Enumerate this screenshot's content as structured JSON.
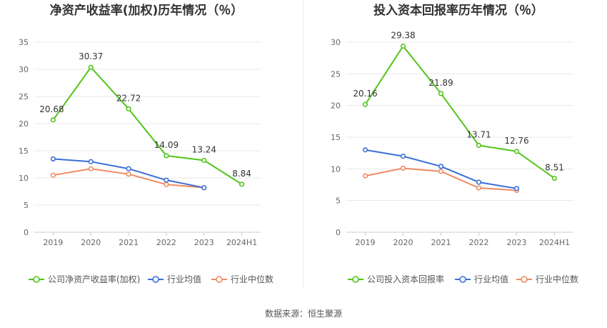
{
  "source": "数据来源：恒生聚源",
  "chart_data": [
    {
      "type": "line",
      "title": "净资产收益率(加权)历年情况（％）",
      "categories": [
        "2019",
        "2020",
        "2021",
        "2022",
        "2023",
        "2024H1"
      ],
      "ylim": [
        0,
        35
      ],
      "yticks": [
        0,
        5,
        10,
        15,
        20,
        25,
        30,
        35
      ],
      "grid": true,
      "legend_position": "bottom",
      "series": [
        {
          "name": "公司净资产收益率(加权)",
          "color": "#52c41a",
          "values": [
            20.68,
            30.37,
            22.72,
            14.09,
            13.24,
            8.84
          ],
          "labels": [
            "20.68",
            "30.37",
            "22.72",
            "14.09",
            "13.24",
            "8.84"
          ]
        },
        {
          "name": "行业均值",
          "color": "#3a6fd8",
          "values": [
            13.5,
            13.0,
            11.7,
            9.6,
            8.2,
            null
          ]
        },
        {
          "name": "行业中位数",
          "color": "#f08a63",
          "values": [
            10.5,
            11.7,
            10.7,
            8.8,
            8.2,
            null
          ]
        }
      ]
    },
    {
      "type": "line",
      "title": "投入资本回报率历年情况（％）",
      "categories": [
        "2019",
        "2020",
        "2021",
        "2022",
        "2023",
        "2024H1"
      ],
      "ylim": [
        0,
        30
      ],
      "yticks": [
        0,
        5,
        10,
        15,
        20,
        25,
        30
      ],
      "grid": true,
      "legend_position": "bottom",
      "series": [
        {
          "name": "公司投入资本回报率",
          "color": "#52c41a",
          "values": [
            20.16,
            29.38,
            21.89,
            13.71,
            12.76,
            8.51
          ],
          "labels": [
            "20.16",
            "29.38",
            "21.89",
            "13.71",
            "12.76",
            "8.51"
          ]
        },
        {
          "name": "行业均值",
          "color": "#3a6fd8",
          "values": [
            13.0,
            12.0,
            10.4,
            7.9,
            6.9,
            null
          ]
        },
        {
          "name": "行业中位数",
          "color": "#f08a63",
          "values": [
            8.9,
            10.1,
            9.6,
            7.0,
            6.6,
            null
          ]
        }
      ]
    }
  ]
}
